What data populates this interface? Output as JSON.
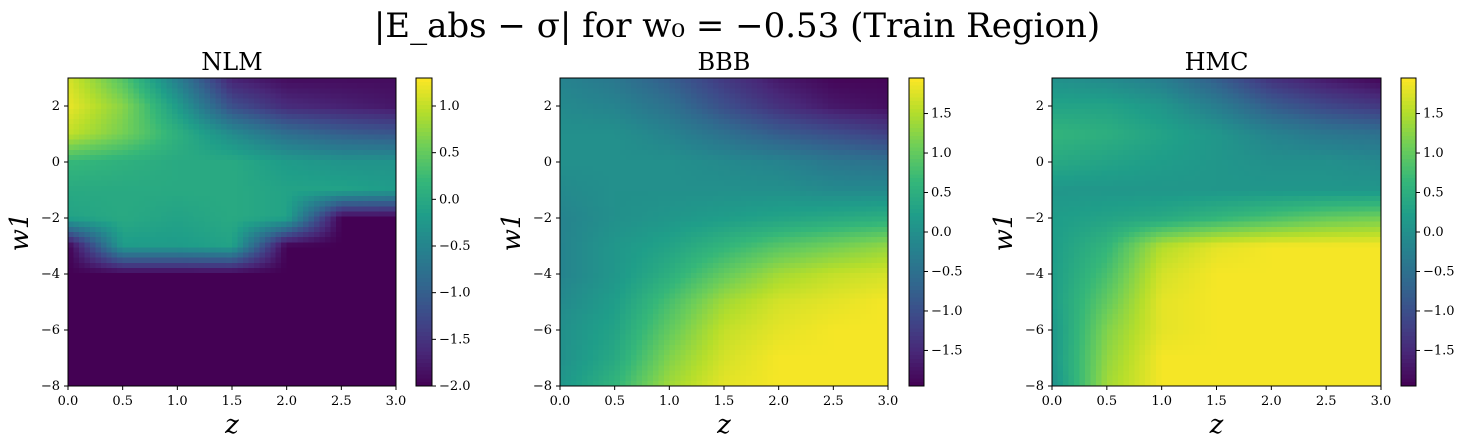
{
  "figure": {
    "title": "|E_abs − σ| for w₀ = −0.53 (Train Region)"
  },
  "colormap": [
    "#440154",
    "#482878",
    "#3e4989",
    "#31688e",
    "#26828e",
    "#1f9e89",
    "#35b779",
    "#6ece58",
    "#b5de2b",
    "#fde725"
  ],
  "chart_data": [
    {
      "type": "heatmap",
      "title": "NLM",
      "xlabel": "z",
      "ylabel": "w1",
      "xlim": [
        0,
        3
      ],
      "ylim": [
        -8,
        3
      ],
      "xticks": [
        "0.0",
        "0.5",
        "1.0",
        "1.5",
        "2.0",
        "2.5",
        "3.0"
      ],
      "yticks": [
        "−8",
        "−6",
        "−4",
        "−2",
        "0",
        "2"
      ],
      "colorbar": {
        "min": -2.0,
        "max": 1.3,
        "ticks": [
          "1.0",
          "0.5",
          "0.0",
          "−0.5",
          "−1.0",
          "−1.5",
          "−2.0"
        ]
      },
      "grid": {
        "x": [
          0.0,
          0.5,
          1.0,
          1.5,
          2.0,
          2.5,
          3.0
        ],
        "y": [
          3,
          2,
          1,
          0,
          -1,
          -2,
          -3,
          -4,
          -5,
          -6,
          -7,
          -8
        ]
      },
      "values": [
        [
          1.1,
          0.4,
          -0.6,
          -1.7,
          -1.9,
          -1.9,
          -1.9
        ],
        [
          1.2,
          0.7,
          -0.2,
          -1.2,
          -1.6,
          -1.7,
          -1.8
        ],
        [
          1.0,
          0.6,
          0.1,
          -0.4,
          -0.8,
          -1.0,
          -1.1
        ],
        [
          0.2,
          0.1,
          0.0,
          0.0,
          -0.2,
          -0.3,
          -0.3
        ],
        [
          0.0,
          0.0,
          0.0,
          0.0,
          -0.1,
          -0.1,
          -0.2
        ],
        [
          -0.1,
          0.0,
          -0.1,
          0.0,
          -0.1,
          -2.0,
          -2.0
        ],
        [
          -2.0,
          -0.2,
          -0.2,
          -0.1,
          -2.0,
          -2.0,
          -2.0
        ],
        [
          -2.0,
          -2.0,
          -2.0,
          -2.0,
          -2.0,
          -2.0,
          -2.0
        ],
        [
          -2.0,
          -2.0,
          -2.0,
          -2.0,
          -2.0,
          -2.0,
          -2.0
        ],
        [
          -2.0,
          -2.0,
          -2.0,
          -2.0,
          -2.0,
          -2.0,
          -2.0
        ],
        [
          -2.0,
          -2.0,
          -2.0,
          -2.0,
          -2.0,
          -2.0,
          -2.0
        ],
        [
          -2.0,
          -2.0,
          -2.0,
          -2.0,
          -2.0,
          -2.0,
          -2.0
        ]
      ]
    },
    {
      "type": "heatmap",
      "title": "BBB",
      "xlabel": "z",
      "ylabel": "w1",
      "xlim": [
        0,
        3
      ],
      "ylim": [
        -8,
        3
      ],
      "xticks": [
        "0.0",
        "0.5",
        "1.0",
        "1.5",
        "2.0",
        "2.5",
        "3.0"
      ],
      "yticks": [
        "−8",
        "−6",
        "−4",
        "−2",
        "0",
        "2"
      ],
      "colorbar": {
        "min": -1.95,
        "max": 1.95,
        "ticks": [
          "1.5",
          "1.0",
          "0.5",
          "0.0",
          "−0.5",
          "−1.0",
          "−1.5"
        ]
      },
      "grid": {
        "x": [
          0.0,
          0.5,
          1.0,
          1.5,
          2.0,
          2.5,
          3.0
        ],
        "y": [
          3,
          2,
          1,
          0,
          -1,
          -2,
          -3,
          -4,
          -5,
          -6,
          -7,
          -8
        ]
      },
      "values": [
        [
          -0.2,
          -0.4,
          -0.8,
          -1.3,
          -1.7,
          -1.9,
          -1.9
        ],
        [
          -0.1,
          -0.2,
          -0.5,
          -1.0,
          -1.4,
          -1.7,
          -1.8
        ],
        [
          0.0,
          0.0,
          -0.2,
          -0.5,
          -0.8,
          -1.0,
          -1.2
        ],
        [
          0.0,
          0.0,
          0.0,
          -0.1,
          -0.2,
          -0.4,
          -0.5
        ],
        [
          -0.1,
          0.0,
          0.0,
          0.0,
          0.0,
          -0.1,
          -0.1
        ],
        [
          -0.2,
          0.0,
          0.1,
          0.2,
          0.3,
          0.4,
          0.5
        ],
        [
          -0.2,
          0.1,
          0.3,
          0.6,
          0.9,
          1.1,
          1.3
        ],
        [
          -0.2,
          0.1,
          0.5,
          1.0,
          1.4,
          1.6,
          1.7
        ],
        [
          -0.1,
          0.2,
          0.8,
          1.4,
          1.7,
          1.8,
          1.9
        ],
        [
          0.0,
          0.3,
          1.0,
          1.6,
          1.8,
          1.9,
          1.9
        ],
        [
          0.0,
          0.4,
          1.2,
          1.7,
          1.9,
          1.9,
          1.9
        ],
        [
          0.1,
          0.6,
          1.4,
          1.8,
          1.9,
          1.9,
          1.9
        ]
      ]
    },
    {
      "type": "heatmap",
      "title": "HMC",
      "xlabel": "z",
      "ylabel": "w1",
      "xlim": [
        0,
        3
      ],
      "ylim": [
        -8,
        3
      ],
      "xticks": [
        "0.0",
        "0.5",
        "1.0",
        "1.5",
        "2.0",
        "2.5",
        "3.0"
      ],
      "yticks": [
        "−8",
        "−6",
        "−4",
        "−2",
        "0",
        "2"
      ],
      "colorbar": {
        "min": -1.95,
        "max": 1.95,
        "ticks": [
          "1.5",
          "1.0",
          "0.5",
          "0.0",
          "−0.5",
          "−1.0",
          "−1.5"
        ]
      },
      "grid": {
        "x": [
          0.0,
          0.5,
          1.0,
          1.5,
          2.0,
          2.5,
          3.0
        ],
        "y": [
          3,
          2,
          1,
          0,
          -1,
          -2,
          -3,
          -4,
          -5,
          -6,
          -7,
          -8
        ]
      },
      "values": [
        [
          0.0,
          -0.1,
          -0.3,
          -0.8,
          -1.4,
          -1.7,
          -1.9
        ],
        [
          0.3,
          0.3,
          0.1,
          -0.3,
          -0.8,
          -1.1,
          -1.3
        ],
        [
          0.6,
          0.5,
          0.3,
          0.1,
          -0.2,
          -0.4,
          -0.5
        ],
        [
          0.4,
          0.3,
          0.2,
          0.1,
          0.0,
          0.0,
          -0.1
        ],
        [
          0.1,
          0.1,
          0.1,
          0.1,
          0.1,
          0.1,
          0.1
        ],
        [
          0.2,
          0.3,
          0.4,
          0.6,
          0.8,
          1.0,
          1.1
        ],
        [
          0.2,
          0.6,
          1.5,
          1.8,
          1.9,
          1.9,
          1.9
        ],
        [
          0.2,
          0.8,
          1.7,
          1.9,
          1.9,
          1.9,
          1.9
        ],
        [
          0.2,
          1.0,
          1.8,
          1.9,
          1.9,
          1.9,
          1.9
        ],
        [
          0.1,
          1.2,
          1.8,
          1.9,
          1.9,
          1.9,
          1.9
        ],
        [
          0.1,
          1.3,
          1.9,
          1.9,
          1.9,
          1.9,
          1.9
        ],
        [
          0.0,
          1.4,
          1.9,
          1.9,
          1.9,
          1.9,
          1.9
        ]
      ]
    }
  ]
}
